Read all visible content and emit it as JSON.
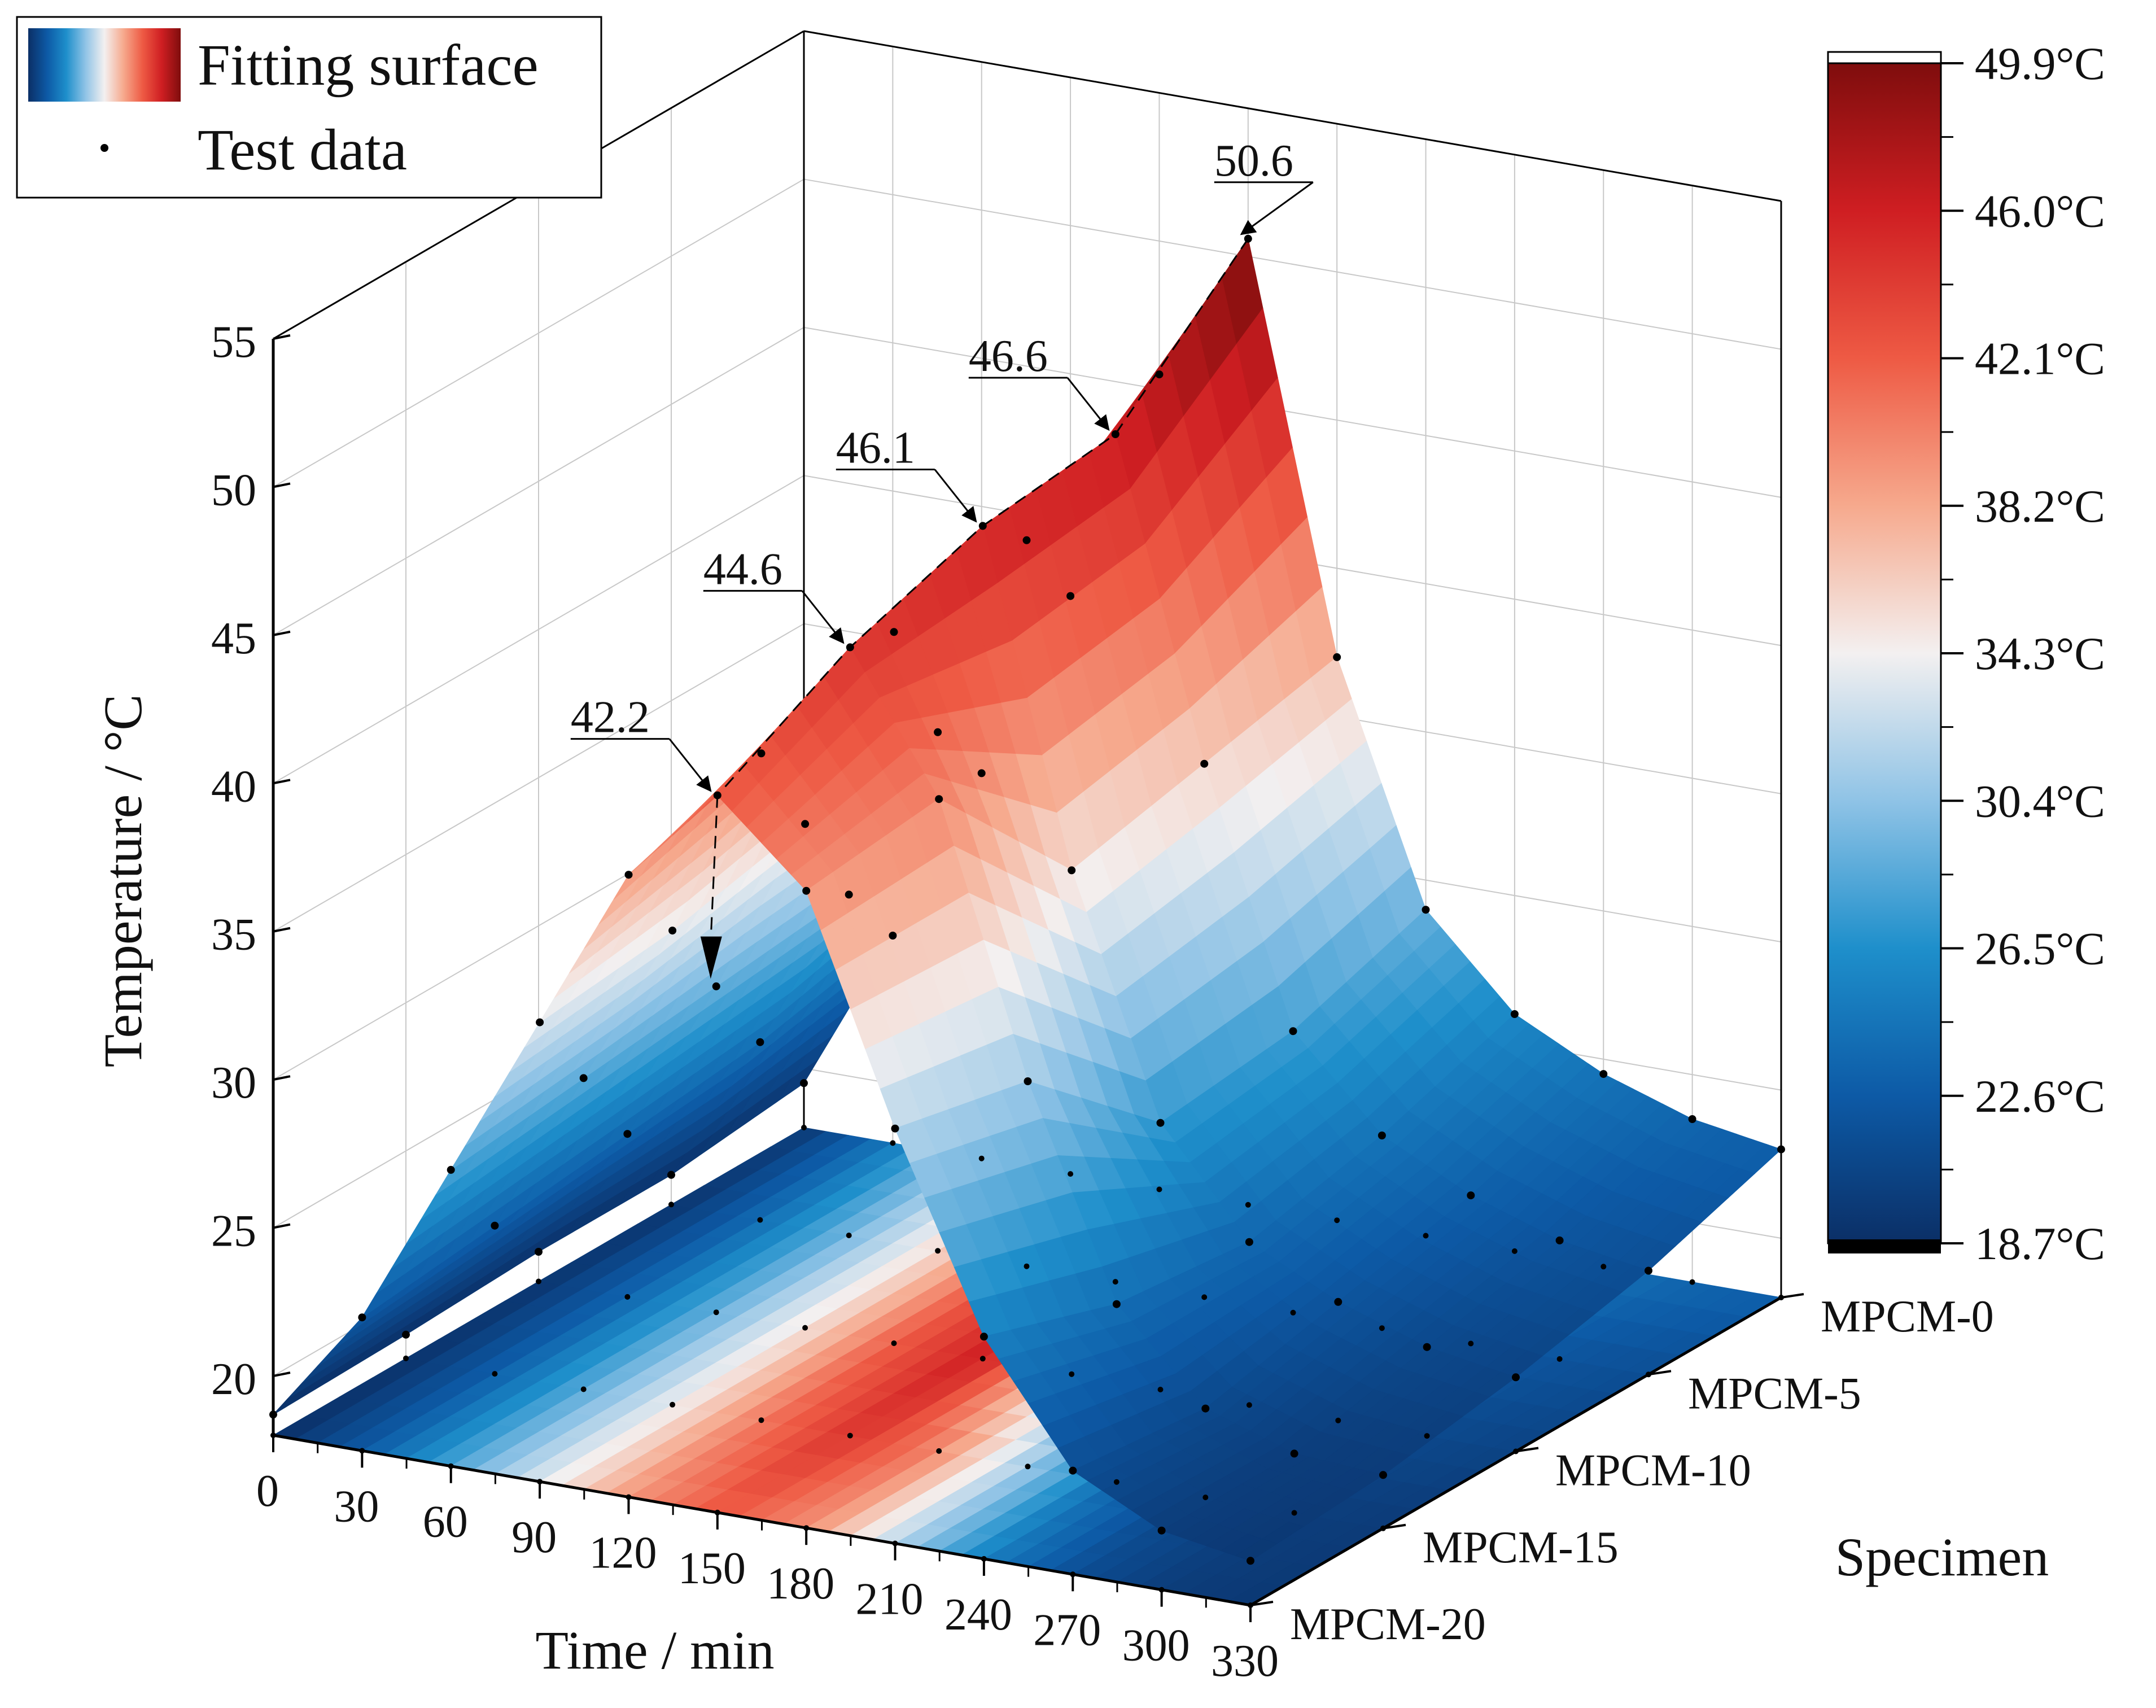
{
  "chart_data": {
    "type": "surface",
    "title": "",
    "xlabel": "Time / min",
    "ylabel": "Specimen",
    "zlabel": "Temperature / °C",
    "x_ticks": [
      "0",
      "30",
      "60",
      "90",
      "120",
      "150",
      "180",
      "210",
      "240",
      "270",
      "300",
      "330"
    ],
    "y_ticks": [
      "MPCM-0",
      "MPCM-5",
      "MPCM-10",
      "MPCM-15",
      "MPCM-20"
    ],
    "z_ticks": [
      "20",
      "25",
      "30",
      "35",
      "40",
      "45",
      "50",
      "55"
    ],
    "xlim": [
      0,
      330
    ],
    "zlim": [
      18,
      55
    ],
    "legend": {
      "position": "top-left",
      "entries": [
        {
          "label": "Fitting surface",
          "marker": "colormap-swatch"
        },
        {
          "label": "Test data",
          "marker": "dot"
        }
      ]
    },
    "colorbar": {
      "position": "right",
      "labels": [
        "49.9°C",
        "46.0°C",
        "42.1°C",
        "38.2°C",
        "34.3°C",
        "30.4°C",
        "26.5°C",
        "22.6°C",
        "18.7°C"
      ],
      "min": 18.7,
      "max": 49.9,
      "colors": [
        "#0b2f66",
        "#0d5aa6",
        "#1e8fcb",
        "#8fc3e6",
        "#f3f0f0",
        "#f6a98d",
        "#ee5a44",
        "#cf1e22",
        "#7f0d0d"
      ]
    },
    "annotations": [
      {
        "text": "50.6",
        "specimen": "MPCM-0",
        "time": 150,
        "value": 50.6
      },
      {
        "text": "46.6",
        "specimen": "MPCM-5",
        "time": 150,
        "value": 46.6
      },
      {
        "text": "46.1",
        "specimen": "MPCM-10",
        "time": 150,
        "value": 46.1
      },
      {
        "text": "44.6",
        "specimen": "MPCM-15",
        "time": 150,
        "value": 44.6
      },
      {
        "text": "42.2",
        "specimen": "MPCM-20",
        "time": 150,
        "value": 42.2
      }
    ],
    "series": [
      {
        "name": "MPCM-0",
        "time": [
          0,
          30,
          60,
          90,
          120,
          150,
          180,
          210,
          240,
          270,
          300,
          330
        ],
        "values": [
          19.5,
          25.0,
          31.0,
          37.5,
          45.5,
          50.6,
          37.0,
          29.0,
          26.0,
          24.5,
          23.5,
          23.0
        ]
      },
      {
        "name": "MPCM-5",
        "time": [
          0,
          30,
          60,
          90,
          120,
          150,
          180,
          210,
          240,
          270,
          300,
          330
        ],
        "values": [
          19.0,
          24.0,
          29.5,
          35.5,
          42.5,
          46.6,
          36.0,
          27.5,
          24.5,
          23.0,
          22.0,
          21.5
        ]
      },
      {
        "name": "MPCM-10",
        "time": [
          0,
          30,
          60,
          90,
          120,
          150,
          180,
          210,
          240,
          270,
          300,
          330
        ],
        "values": [
          19.0,
          23.5,
          29.0,
          35.0,
          42.0,
          46.1,
          35.0,
          27.0,
          23.5,
          22.0,
          21.0,
          20.5
        ]
      },
      {
        "name": "MPCM-15",
        "time": [
          0,
          30,
          60,
          90,
          120,
          150,
          180,
          210,
          240,
          270,
          300,
          330
        ],
        "values": [
          18.8,
          23.0,
          28.5,
          34.0,
          40.5,
          44.6,
          40.0,
          31.0,
          24.0,
          21.0,
          20.0,
          19.8
        ]
      },
      {
        "name": "MPCM-20",
        "time": [
          0,
          30,
          60,
          90,
          120,
          150,
          180,
          210,
          240,
          270,
          300,
          330
        ],
        "values": [
          18.7,
          22.5,
          28.0,
          33.5,
          39.0,
          42.2,
          39.5,
          32.0,
          25.5,
          21.5,
          20.0,
          19.5
        ]
      }
    ]
  }
}
